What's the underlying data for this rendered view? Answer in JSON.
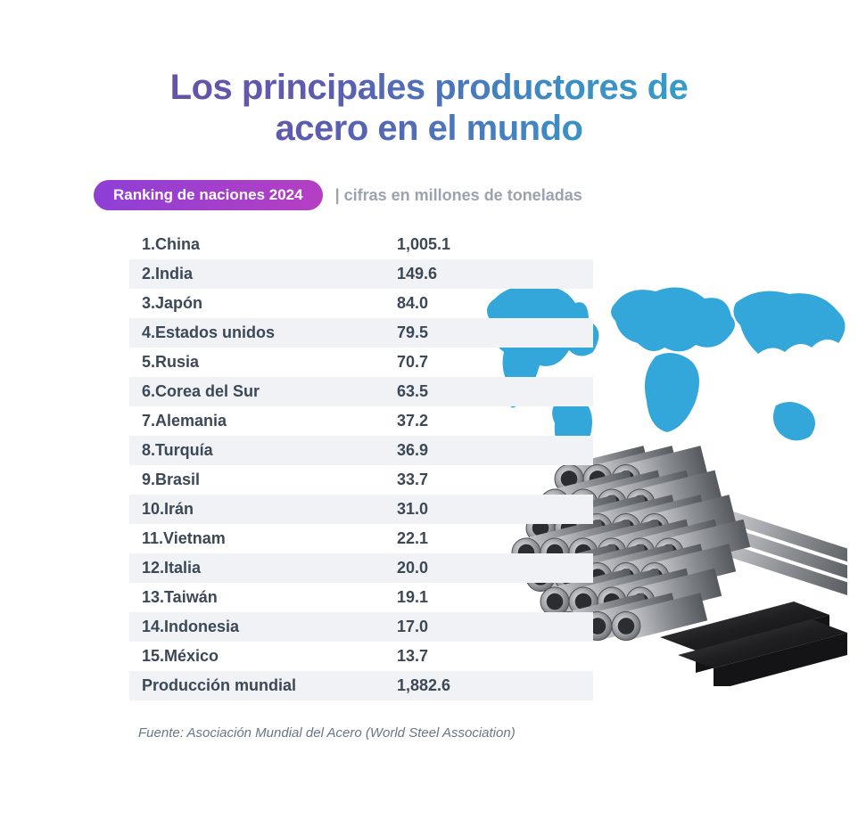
{
  "title_line1": "Los principales productores de",
  "title_line2": "acero en el mundo",
  "pill_label": "Ranking de naciones 2024",
  "units_label": "| cifras en millones de toneladas",
  "rows": [
    {
      "label": "1.China",
      "value": "1,005.1"
    },
    {
      "label": "2.India",
      "value": "149.6"
    },
    {
      "label": "3.Japón",
      "value": "84.0"
    },
    {
      "label": "4.Estados unidos",
      "value": "79.5"
    },
    {
      "label": "5.Rusia",
      "value": "70.7"
    },
    {
      "label": "6.Corea del Sur",
      "value": "63.5"
    },
    {
      "label": "7.Alemania",
      "value": "37.2"
    },
    {
      "label": "8.Turquía",
      "value": "36.9"
    },
    {
      "label": "9.Brasil",
      "value": "33.7"
    },
    {
      "label": "10.Irán",
      "value": "31.0"
    },
    {
      "label": "11.Vietnam",
      "value": "22.1"
    },
    {
      "label": "12.Italia",
      "value": "20.0"
    },
    {
      "label": "13.Taiwán",
      "value": "19.1"
    },
    {
      "label": "14.Indonesia",
      "value": "17.0"
    },
    {
      "label": "15.México",
      "value": "13.7"
    },
    {
      "label": "Producción mundial",
      "value": "1,882.6"
    }
  ],
  "source": "Fuente: Asociación Mundial del Acero (World Steel Association)",
  "style": {
    "title_gradient": [
      "#6d4ca3",
      "#5b5db0",
      "#3c8ec4",
      "#2fa6c8"
    ],
    "pill_gradient": [
      "#8e3fd6",
      "#b53fc2"
    ],
    "row_stripe_color": "#f0f2f5",
    "text_color": "#3b4856",
    "map_color": "#29a3d8",
    "title_fontsize": 40,
    "body_fontsize": 18,
    "pill_fontsize": 17,
    "source_fontsize": 15
  }
}
